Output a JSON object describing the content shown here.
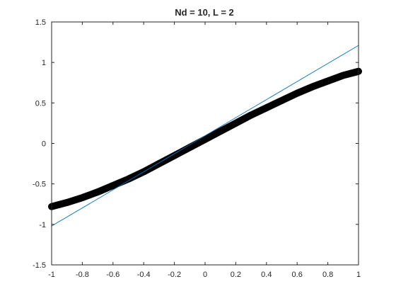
{
  "chart_data": {
    "type": "line",
    "title": "Nd = 10, L = 2",
    "xlabel": "",
    "ylabel": "",
    "xlim": [
      -1,
      1
    ],
    "ylim": [
      -1.5,
      1.5
    ],
    "xticks": [
      -1,
      -0.8,
      -0.6,
      -0.4,
      -0.2,
      0,
      0.2,
      0.4,
      0.6,
      0.8,
      1
    ],
    "yticks": [
      -1.5,
      -1,
      -0.5,
      0,
      0.5,
      1,
      1.5
    ],
    "grid": false,
    "legend": "none",
    "series": [
      {
        "style": "thick black noisy band",
        "color": "#000000",
        "x": [
          -1,
          -0.9,
          -0.8,
          -0.7,
          -0.6,
          -0.5,
          -0.4,
          -0.3,
          -0.2,
          -0.1,
          0,
          0.1,
          0.2,
          0.3,
          0.4,
          0.5,
          0.6,
          0.7,
          0.8,
          0.9,
          1
        ],
        "y": [
          -0.78,
          -0.73,
          -0.67,
          -0.6,
          -0.52,
          -0.44,
          -0.35,
          -0.25,
          -0.15,
          -0.05,
          0.05,
          0.15,
          0.25,
          0.35,
          0.44,
          0.53,
          0.62,
          0.7,
          0.77,
          0.84,
          0.89
        ]
      },
      {
        "style": "thin blue line",
        "color": "#0072BD",
        "x": [
          -1,
          1
        ],
        "y": [
          -1.02,
          1.21
        ]
      }
    ]
  }
}
